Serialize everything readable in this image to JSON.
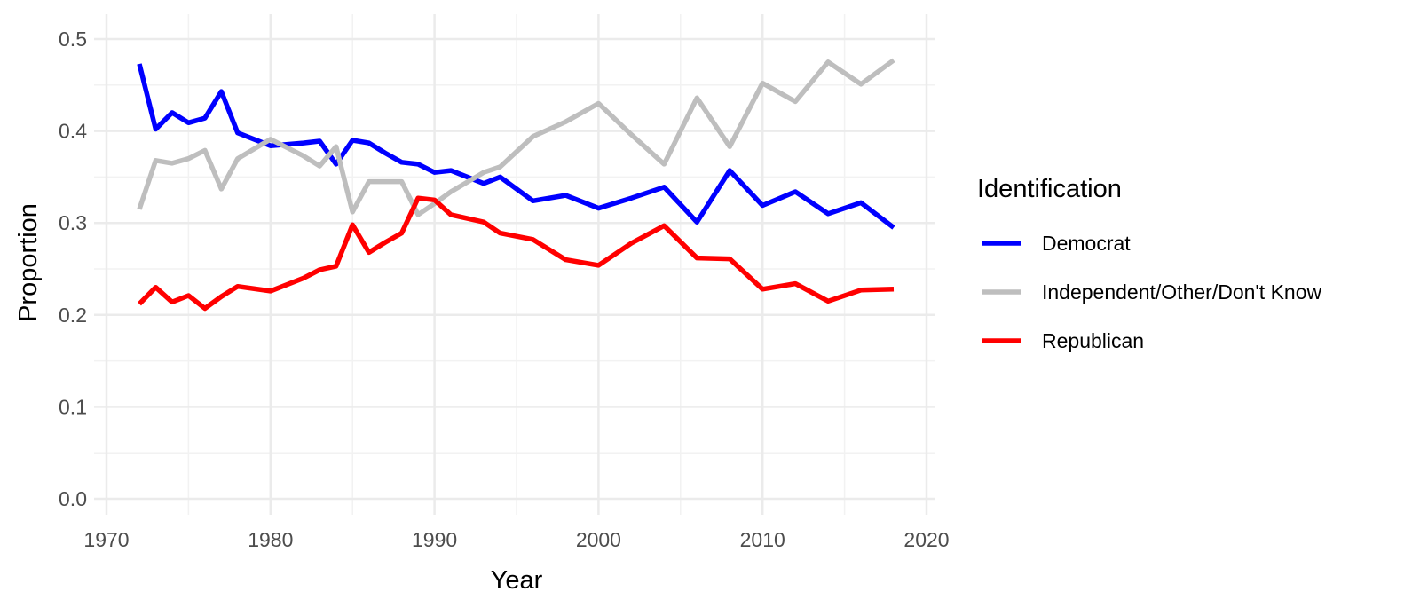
{
  "chart_data": {
    "type": "line",
    "xlabel": "Year",
    "ylabel": "Proportion",
    "xlim": [
      1970,
      2020
    ],
    "ylim": [
      0.0,
      0.5
    ],
    "x_ticks": [
      1970,
      1980,
      1990,
      2000,
      2010,
      2020
    ],
    "y_ticks": [
      0.0,
      0.1,
      0.2,
      0.3,
      0.4,
      0.5
    ],
    "x_tick_labels": [
      "1970",
      "1980",
      "1990",
      "2000",
      "2010",
      "2020"
    ],
    "y_tick_labels": [
      "0.0",
      "0.1",
      "0.2",
      "0.3",
      "0.4",
      "0.5"
    ],
    "grid": true,
    "legend": {
      "title": "Identification",
      "position": "right"
    },
    "x": [
      1972,
      1973,
      1974,
      1975,
      1976,
      1977,
      1978,
      1980,
      1982,
      1983,
      1984,
      1985,
      1986,
      1987,
      1988,
      1989,
      1990,
      1991,
      1993,
      1994,
      1996,
      1998,
      2000,
      2002,
      2004,
      2006,
      2008,
      2010,
      2012,
      2014,
      2016,
      2018
    ],
    "series": [
      {
        "name": "Democrat",
        "color": "#0000FF",
        "values": [
          0.473,
          0.402,
          0.42,
          0.409,
          0.414,
          0.443,
          0.398,
          0.384,
          0.387,
          0.389,
          0.364,
          0.39,
          0.387,
          0.376,
          0.366,
          0.364,
          0.355,
          0.357,
          0.343,
          0.35,
          0.324,
          0.33,
          0.316,
          0.327,
          0.339,
          0.301,
          0.357,
          0.319,
          0.334,
          0.31,
          0.322,
          0.295
        ]
      },
      {
        "name": "Independent/Other/Don't Know",
        "color": "#BEBEBE",
        "values": [
          0.315,
          0.368,
          0.365,
          0.37,
          0.379,
          0.337,
          0.37,
          0.391,
          0.373,
          0.362,
          0.383,
          0.312,
          0.345,
          0.345,
          0.345,
          0.309,
          0.321,
          0.334,
          0.355,
          0.361,
          0.394,
          0.41,
          0.43,
          0.396,
          0.364,
          0.436,
          0.383,
          0.452,
          0.432,
          0.475,
          0.451,
          0.477
        ]
      },
      {
        "name": "Republican",
        "color": "#FF0000",
        "values": [
          0.212,
          0.23,
          0.214,
          0.221,
          0.207,
          0.22,
          0.231,
          0.226,
          0.24,
          0.249,
          0.253,
          0.298,
          0.268,
          0.279,
          0.289,
          0.327,
          0.325,
          0.309,
          0.301,
          0.289,
          0.282,
          0.26,
          0.254,
          0.278,
          0.297,
          0.262,
          0.261,
          0.228,
          0.234,
          0.215,
          0.227,
          0.228
        ]
      }
    ]
  }
}
